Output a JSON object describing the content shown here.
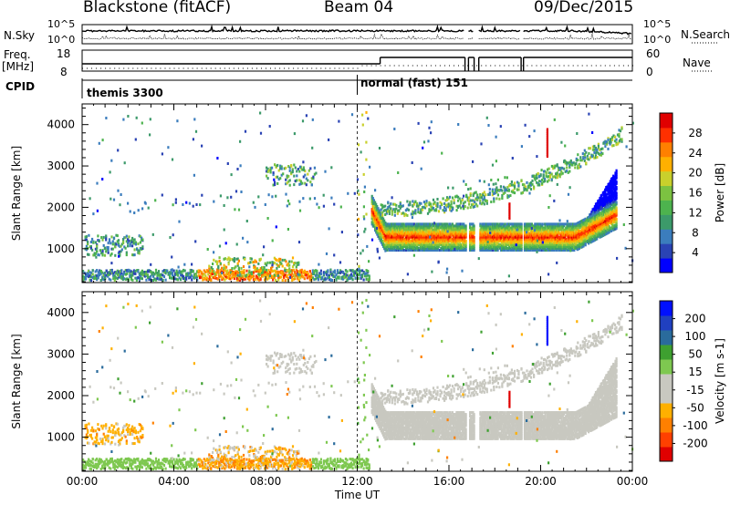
{
  "header": {
    "station": "Blackstone (fitACF)",
    "beam": "Beam 04",
    "date": "09/Dec/2015"
  },
  "noise_panel": {
    "left_label": "N.Sky",
    "left_ticks": [
      "10^5",
      "10^0"
    ],
    "right_ticks": [
      "10^5",
      "10^0"
    ],
    "right_label": "N.Search"
  },
  "freq_panel": {
    "left_label": "Freq.",
    "left_unit": "[MHz]",
    "left_ticks": [
      "18",
      "8"
    ],
    "right_ticks": [
      "60",
      "0"
    ],
    "right_label": "Nave"
  },
  "cpid": {
    "label": "CPID",
    "modes": [
      {
        "name": "themis 3300",
        "start_hour": 0,
        "end_hour": 12
      },
      {
        "name": "normal (fast) 151",
        "start_hour": 12,
        "end_hour": 24
      }
    ]
  },
  "chart_data": [
    {
      "type": "heatmap",
      "ylabel": "Slant Range [km]",
      "xlabel": "",
      "xlim": [
        0,
        24
      ],
      "ylim": [
        180,
        4500
      ],
      "yticks": [
        1000,
        2000,
        3000,
        4000
      ],
      "colorbar": {
        "label": "Power [dB]",
        "ticks": [
          "28",
          "24",
          "20",
          "16",
          "12",
          "8",
          "4"
        ],
        "range": [
          0,
          30
        ],
        "colors": [
          "#0000ff",
          "#2a43b4",
          "#3b7dbd",
          "#3c9a6a",
          "#4db34e",
          "#7cc241",
          "#c9d02c",
          "#ffb000",
          "#ff8000",
          "#ff3000",
          "#e00000"
        ]
      }
    },
    {
      "type": "heatmap",
      "ylabel": "Slant Range [km]",
      "xlabel": "Time UT",
      "xlim": [
        0,
        24
      ],
      "ylim": [
        180,
        4500
      ],
      "yticks": [
        1000,
        2000,
        3000,
        4000
      ],
      "xtick_labels": [
        "00:00",
        "04:00",
        "08:00",
        "12:00",
        "16:00",
        "20:00",
        "00:00"
      ],
      "colorbar": {
        "label": "Velocity [m s-1]",
        "ticks": [
          "200",
          "100",
          "50",
          "15",
          "-15",
          "-50",
          "-100",
          "-200"
        ],
        "range": [
          -250,
          250
        ],
        "colors": [
          "#e00000",
          "#ff4000",
          "#ff8000",
          "#ffb000",
          "#c8c8c0",
          "#c8c8c0",
          "#7ec850",
          "#3ea030",
          "#2a6b9c",
          "#2040c0",
          "#0010ff"
        ]
      }
    }
  ]
}
